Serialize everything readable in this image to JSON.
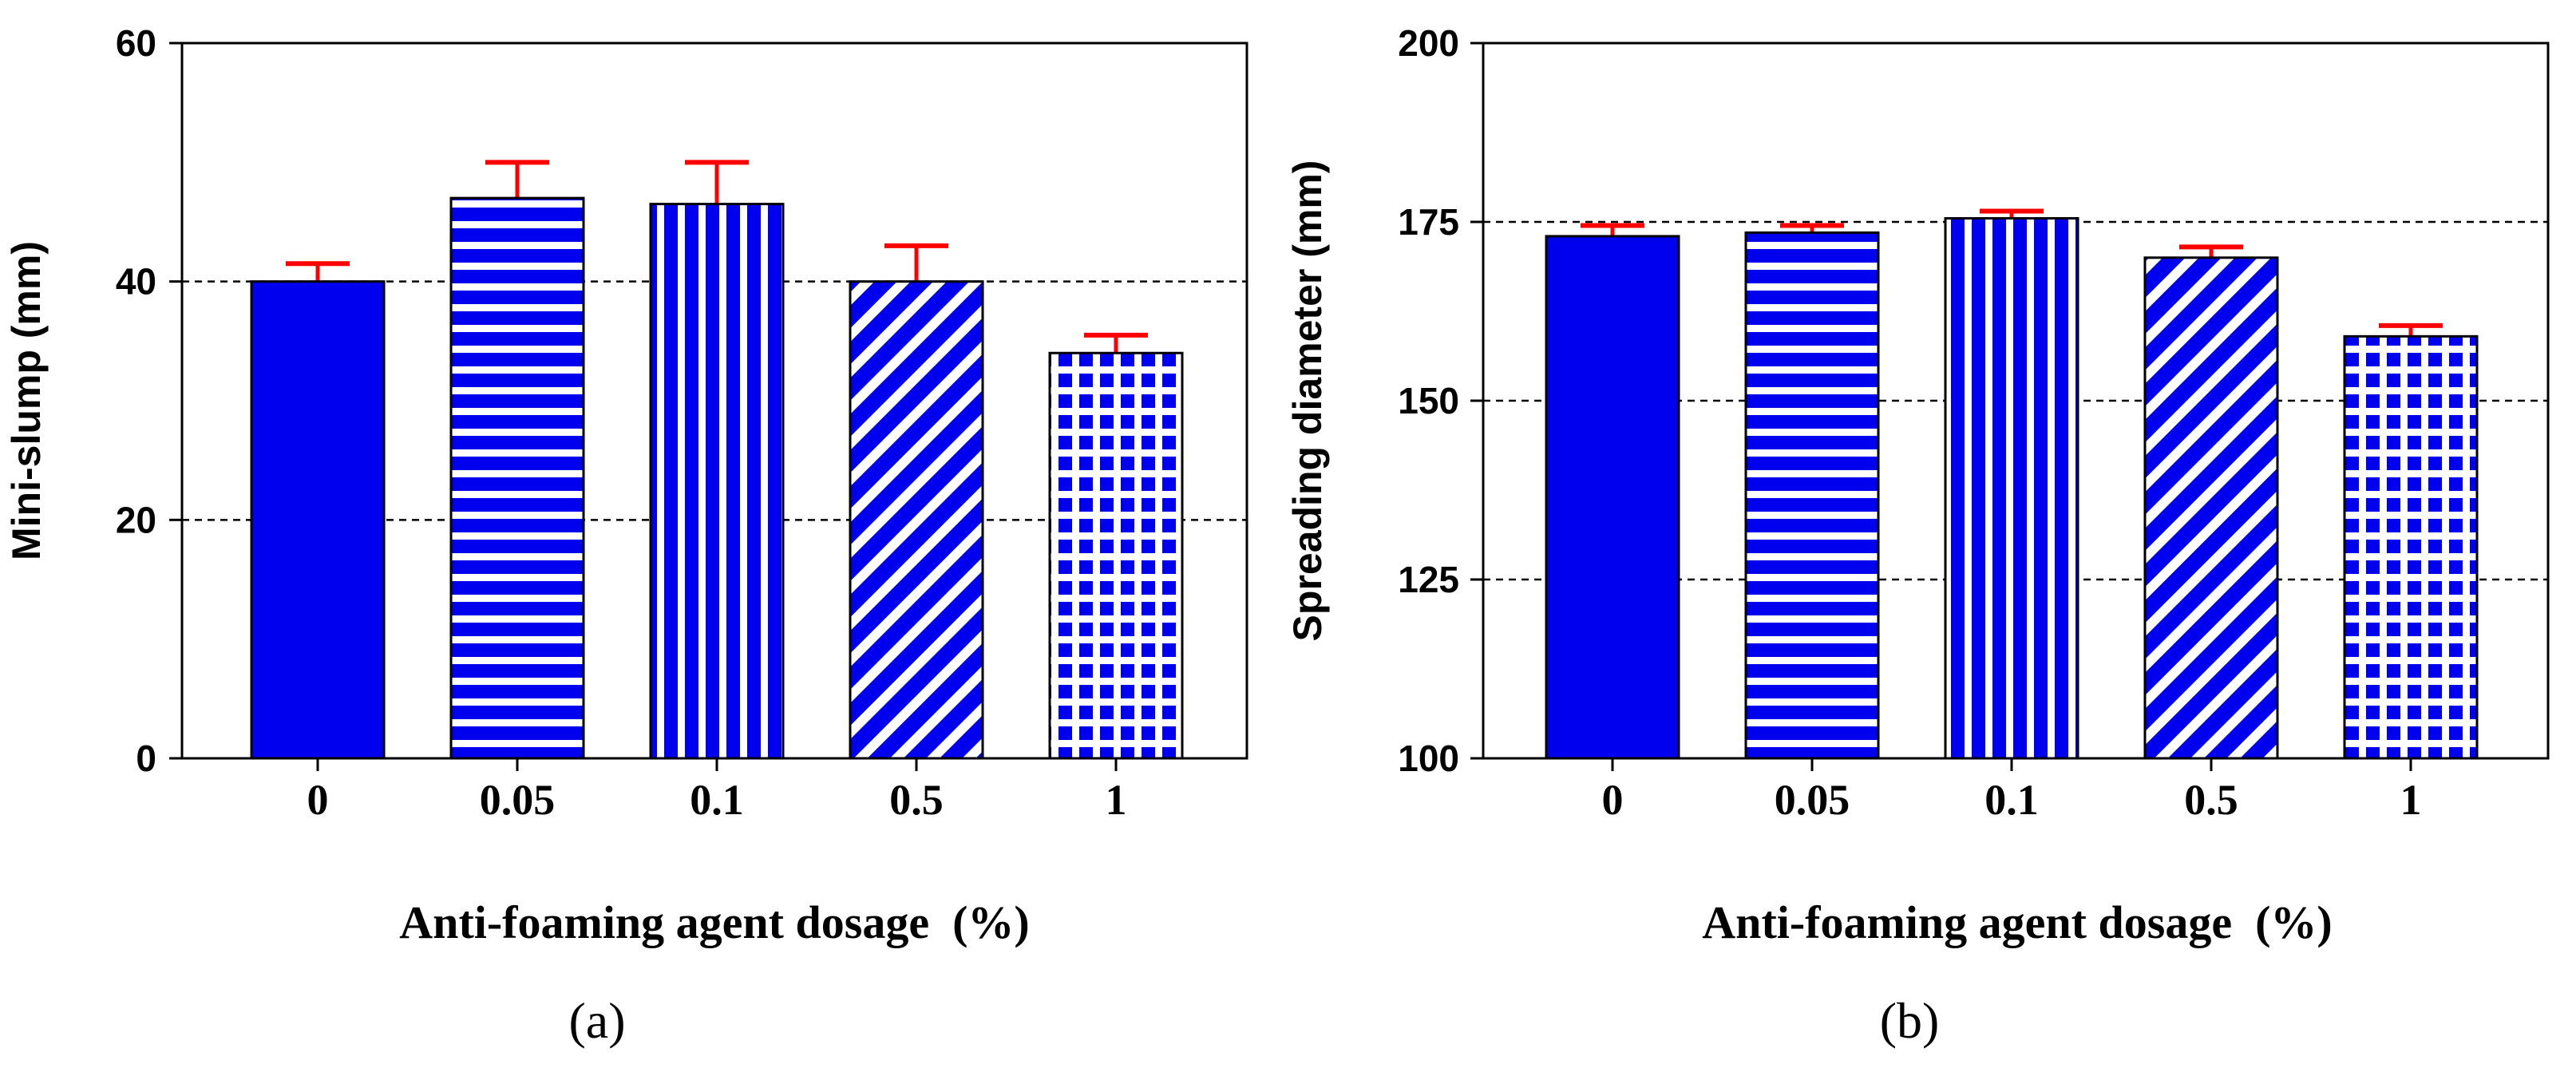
{
  "colors": {
    "bar_fill": "#0000ee",
    "error_bar": "#ff0000",
    "axis": "#000000",
    "grid": "#000000"
  },
  "chart_data": [
    {
      "type": "bar",
      "panel": "a",
      "panel_label": "(a)",
      "title": "",
      "xlabel": "Anti-foaming agent dosage  (%)",
      "ylabel": "Mini-slump (mm)",
      "categories": [
        "0",
        "0.05",
        "0.1",
        "0.5",
        "1"
      ],
      "values": [
        40,
        47,
        46.5,
        40,
        34
      ],
      "errors": [
        1.5,
        3,
        3.5,
        3,
        1.5
      ],
      "patterns": [
        "solid",
        "horizontal",
        "vertical",
        "diagonal",
        "grid"
      ],
      "ylim": [
        0,
        60
      ],
      "yticks": [
        "0",
        "20",
        "40",
        "60"
      ],
      "ytick_values": [
        0,
        20,
        40,
        60
      ],
      "gridlines": [
        20,
        40
      ],
      "grid": "dashed horizontal"
    },
    {
      "type": "bar",
      "panel": "b",
      "panel_label": "(b)",
      "title": "",
      "xlabel": "Anti-foaming agent dosage  (%)",
      "ylabel": "Spreading diameter (mm)",
      "categories": [
        "0",
        "0.05",
        "0.1",
        "0.5",
        "1"
      ],
      "values": [
        173,
        173.5,
        175.5,
        170,
        159
      ],
      "errors": [
        1.5,
        1,
        1,
        1.5,
        1.5
      ],
      "patterns": [
        "solid",
        "horizontal",
        "vertical",
        "diagonal",
        "grid"
      ],
      "ylim": [
        100,
        200
      ],
      "yticks": [
        "100",
        "125",
        "150",
        "175",
        "200"
      ],
      "ytick_values": [
        100,
        125,
        150,
        175,
        200
      ],
      "gridlines": [
        125,
        150,
        175
      ],
      "grid": "dashed horizontal"
    }
  ]
}
